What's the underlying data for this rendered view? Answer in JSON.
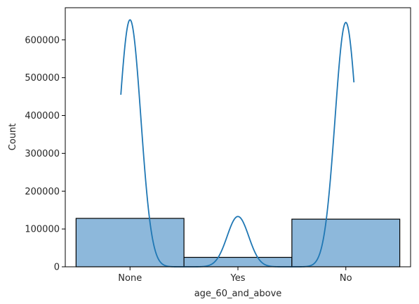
{
  "chart_data": {
    "type": "bar",
    "subtype": "histogram-with-kde",
    "title": "",
    "xlabel": "age_60_and_above",
    "ylabel": "Count",
    "categories": [
      "None",
      "Yes",
      "No"
    ],
    "values": [
      128000,
      25000,
      126000
    ],
    "ylim": [
      0,
      685000
    ],
    "yticks": [
      0,
      100000,
      200000,
      300000,
      400000,
      500000,
      600000
    ],
    "ytick_labels": [
      "0",
      "100000",
      "200000",
      "300000",
      "400000",
      "500000",
      "600000"
    ],
    "kde": {
      "description": "Smoothed KDE curve over the three categories",
      "peaks": [
        {
          "category": "None",
          "value": 653000
        },
        {
          "category": "Yes",
          "value": 133000
        },
        {
          "category": "No",
          "value": 646000
        }
      ],
      "bandwidth_categories": 0.1
    },
    "colors": {
      "bar_fill": "#8db8db",
      "bar_edge": "#000000",
      "kde_line": "#1f77b4"
    }
  }
}
